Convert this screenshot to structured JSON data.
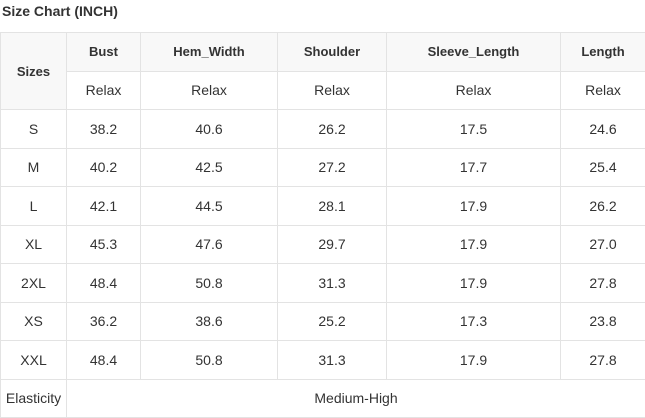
{
  "title": "Size Chart (INCH)",
  "table": {
    "sizes_header": "Sizes",
    "columns": [
      "Bust",
      "Hem_Width",
      "Shoulder",
      "Sleeve_Length",
      "Length"
    ],
    "subheaders": [
      "Relax",
      "Relax",
      "Relax",
      "Relax",
      "Relax"
    ],
    "rows": [
      [
        "S",
        "38.2",
        "40.6",
        "26.2",
        "17.5",
        "24.6"
      ],
      [
        "M",
        "40.2",
        "42.5",
        "27.2",
        "17.7",
        "25.4"
      ],
      [
        "L",
        "42.1",
        "44.5",
        "28.1",
        "17.9",
        "26.2"
      ],
      [
        "XL",
        "45.3",
        "47.6",
        "29.7",
        "17.9",
        "27.0"
      ],
      [
        "2XL",
        "48.4",
        "50.8",
        "31.3",
        "17.9",
        "27.8"
      ],
      [
        "XS",
        "36.2",
        "38.6",
        "25.2",
        "17.3",
        "23.8"
      ],
      [
        "XXL",
        "48.4",
        "50.8",
        "31.3",
        "17.9",
        "27.8"
      ]
    ],
    "footer": {
      "label": "Elasticity",
      "value": "Medium-High"
    }
  }
}
